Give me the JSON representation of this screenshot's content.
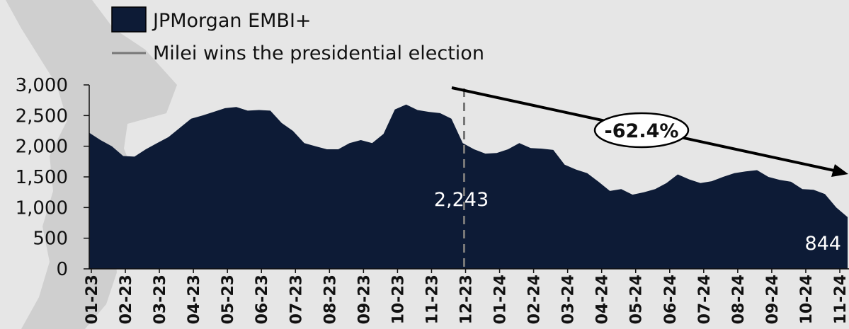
{
  "colors": {
    "background": "#e6e6e6",
    "map_shape": "#cfcfcf",
    "area_fill": "#0d1b36",
    "event_line": "#777777",
    "trend_arrow": "#000000",
    "annotation_text": "#ffffff"
  },
  "legend": {
    "position": "top-left",
    "series_label": "JPMorgan EMBI+",
    "event_label": "Milei wins the presidential election"
  },
  "chart_data": {
    "type": "area",
    "grid": false,
    "x_tick_labels": [
      "01-23",
      "02-23",
      "03-23",
      "04-23",
      "05-23",
      "06-23",
      "07-23",
      "08-23",
      "09-23",
      "10-23",
      "11-23",
      "12-23",
      "01-24",
      "02-24",
      "03-24",
      "04-24",
      "05-24",
      "06-24",
      "07-24",
      "08-24",
      "09-24",
      "10-24",
      "11-24"
    ],
    "y_ticks": [
      0,
      500,
      1000,
      1500,
      2000,
      2500,
      3000
    ],
    "y_tick_labels": [
      "0",
      "500",
      "1,000",
      "1,500",
      "2,000",
      "2,500",
      "3,000"
    ],
    "ylim": [
      0,
      3000
    ],
    "xlim": [
      "01-23",
      "11-24"
    ],
    "series": [
      {
        "name": "JPMorgan EMBI+",
        "x": [
          "01-23",
          "01-23",
          "02-23",
          "02-23",
          "02-23",
          "03-23",
          "03-23",
          "03-23",
          "04-23",
          "04-23",
          "04-23",
          "05-23",
          "05-23",
          "05-23",
          "06-23",
          "06-23",
          "06-23",
          "07-23",
          "07-23",
          "07-23",
          "08-23",
          "08-23",
          "08-23",
          "09-23",
          "09-23",
          "09-23",
          "10-23",
          "10-23",
          "10-23",
          "11-23",
          "11-23",
          "11-23",
          "11-23",
          "12-23",
          "12-23",
          "12-23",
          "01-24",
          "01-24",
          "01-24",
          "02-24",
          "02-24",
          "02-24",
          "03-24",
          "03-24",
          "03-24",
          "04-24",
          "04-24",
          "04-24",
          "05-24",
          "05-24",
          "05-24",
          "06-24",
          "06-24",
          "06-24",
          "07-24",
          "07-24",
          "07-24",
          "08-24",
          "08-24",
          "08-24",
          "09-24",
          "09-24",
          "09-24",
          "10-24",
          "10-24",
          "10-24",
          "11-24",
          "11-24"
        ],
        "values": [
          2220,
          2100,
          2000,
          1840,
          1830,
          1950,
          2050,
          2150,
          2300,
          2450,
          2500,
          2560,
          2620,
          2640,
          2580,
          2590,
          2580,
          2380,
          2250,
          2050,
          2000,
          1950,
          1950,
          2050,
          2100,
          2050,
          2200,
          2600,
          2680,
          2590,
          2560,
          2540,
          2450,
          2050,
          1950,
          1880,
          1890,
          1950,
          2050,
          1970,
          1960,
          1940,
          1700,
          1620,
          1560,
          1420,
          1270,
          1300,
          1210,
          1250,
          1300,
          1400,
          1540,
          1460,
          1400,
          1430,
          1500,
          1560,
          1590,
          1610,
          1500,
          1450,
          1420,
          1300,
          1290,
          1220,
          1000,
          844
        ],
        "color": "#0d1b36"
      }
    ],
    "event": {
      "x": "12-23",
      "label": "Milei wins the presidential election",
      "value_label": "2,243"
    },
    "end_value_label": "844",
    "trend": {
      "label": "-62.4%",
      "direction": "down"
    }
  }
}
